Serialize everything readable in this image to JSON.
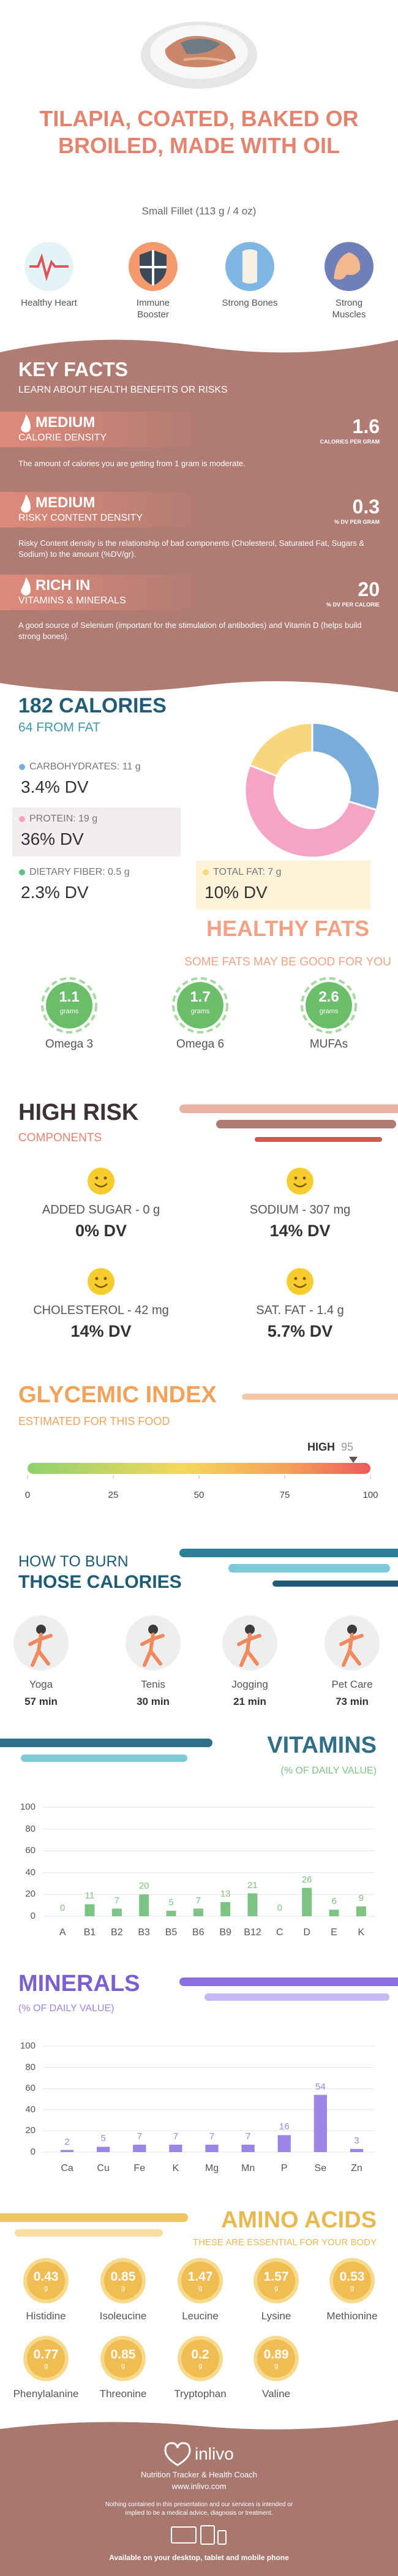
{
  "header": {
    "title": "TILAPIA, COATED, BAKED OR BROILED, MADE WITH OIL",
    "serving": "Small Fillet (113 g / 4 oz)"
  },
  "benefits": [
    "Healthy Heart",
    "Immune Booster",
    "Strong Bones",
    "Strong Muscles"
  ],
  "key_facts": {
    "title": "KEY FACTS",
    "subtitle": "LEARN ABOUT HEALTH BENEFITS OR RISKS",
    "items": [
      {
        "level": "MEDIUM",
        "name": "CALORIE DENSITY",
        "value": 1.6,
        "unit": "CALORIES PER GRAM",
        "text": "The amount of calories you are getting from 1 gram is moderate."
      },
      {
        "level": "MEDIUM",
        "name": "RISKY CONTENT DENSITY",
        "value": 0.3,
        "unit": "% DV PER GRAM",
        "text": "Risky Content density is the relationship of bad components (Cholesterol, Saturated Fat, Sugars & Sodium) to the amount (%DV/gr)."
      },
      {
        "level": "RICH IN",
        "name": "VITAMINS & MINERALS",
        "value": 20,
        "unit": "% DV PER CALORIE",
        "text": "A good source of Selenium (important for the stimulation of antibodies) and Vitamin D (helps build strong bones)."
      }
    ]
  },
  "calories": {
    "title": "182 CALORIES",
    "subtitle": "64 FROM FAT",
    "type": "pie",
    "nutrients": [
      {
        "label": "CARBOHYDRATES: 11 g",
        "dv": "3.4% DV",
        "value": 11,
        "color": "#78acd9"
      },
      {
        "label": "PROTEIN: 19 g",
        "dv": "36% DV",
        "value": 19,
        "color": "#f5a4c3"
      },
      {
        "label": "DIETARY FIBER: 0.5 g",
        "dv": "2.3% DV",
        "color": "#5fbf86"
      },
      {
        "label": "TOTAL FAT: 7 g",
        "dv": "10% DV",
        "value": 7,
        "color": "#f7d67c"
      }
    ]
  },
  "healthy_fats": {
    "title": "HEALTHY FATS",
    "subtitle": "SOME FATS MAY BE GOOD FOR YOU",
    "unit": "grams",
    "items": [
      {
        "value": 1.1,
        "name": "Omega 3"
      },
      {
        "value": 1.7,
        "name": "Omega 6"
      },
      {
        "value": 2.6,
        "name": "MUFAs"
      }
    ]
  },
  "high_risk": {
    "title": "HIGH RISK",
    "subtitle": "COMPONENTS",
    "items": [
      {
        "label": "ADDED SUGAR - 0 g",
        "dv": "0% DV"
      },
      {
        "label": "SODIUM - 307 mg",
        "dv": "14% DV"
      },
      {
        "label": "CHOLESTEROL - 42 mg",
        "dv": "14% DV"
      },
      {
        "label": "SAT. FAT - 1.4 g",
        "dv": "5.7% DV"
      }
    ]
  },
  "glycemic": {
    "title": "GLYCEMIC INDEX",
    "subtitle": "ESTIMATED FOR THIS FOOD",
    "level": "HIGH",
    "value": 95,
    "xlim": [
      0,
      100
    ],
    "xticks": [
      0,
      25,
      50,
      75,
      100
    ]
  },
  "burn": {
    "title": "HOW TO BURN",
    "subtitle": "THOSE CALORIES",
    "items": [
      {
        "name": "Yoga",
        "time": "57 min"
      },
      {
        "name": "Tenis",
        "time": "30 min"
      },
      {
        "name": "Jogging",
        "time": "21 min"
      },
      {
        "name": "Pet Care",
        "time": "73 min"
      }
    ]
  },
  "vitamins": {
    "title": "VITAMINS",
    "subtitle": "(% OF DAILY VALUE)",
    "chart_data": {
      "type": "bar",
      "categories": [
        "A",
        "B1",
        "B2",
        "B3",
        "B5",
        "B6",
        "B9",
        "B12",
        "C",
        "D",
        "E",
        "K"
      ],
      "values": [
        0,
        11,
        7,
        20,
        5,
        7,
        13,
        21,
        0,
        26,
        6,
        9
      ],
      "color": "#7dc383",
      "ylim": [
        0,
        100
      ],
      "yticks": [
        0,
        20,
        40,
        60,
        80,
        100
      ],
      "grid": true
    }
  },
  "minerals": {
    "title": "MINERALS",
    "subtitle": "(% OF DAILY VALUE)",
    "chart_data": {
      "type": "bar",
      "categories": [
        "Ca",
        "Cu",
        "Fe",
        "K",
        "Mg",
        "Mn",
        "P",
        "Se",
        "Zn"
      ],
      "values": [
        2,
        5,
        7,
        7,
        7,
        7,
        16,
        54,
        3
      ],
      "color": "#9b85e6",
      "ylim": [
        0,
        100
      ],
      "yticks": [
        0,
        20,
        40,
        60,
        80,
        100
      ],
      "grid": true
    }
  },
  "amino_acids": {
    "title": "AMINO ACIDS",
    "subtitle": "THESE ARE ESSENTIAL FOR YOUR BODY",
    "unit": "g",
    "items": [
      {
        "name": "Histidine",
        "value": 0.43
      },
      {
        "name": "Isoleucine",
        "value": 0.85
      },
      {
        "name": "Leucine",
        "value": 1.47
      },
      {
        "name": "Lysine",
        "value": 1.57
      },
      {
        "name": "Methionine",
        "value": 0.53
      },
      {
        "name": "Phenylalanine",
        "value": 0.77
      },
      {
        "name": "Threonine",
        "value": 0.85
      },
      {
        "name": "Tryptophan",
        "value": 0.2
      },
      {
        "name": "Valine",
        "value": 0.89
      }
    ]
  },
  "footer": {
    "brand": "inlivo",
    "tagline": "Nutrition Tracker & Health Coach",
    "url": "www.inlivo.com",
    "disclaimer": "Nothing contained in this presentation and our services is intended or implied to be a medical advice, diagnosis or treatment.",
    "availability": "Available on your desktop, tablet and mobile phone"
  }
}
